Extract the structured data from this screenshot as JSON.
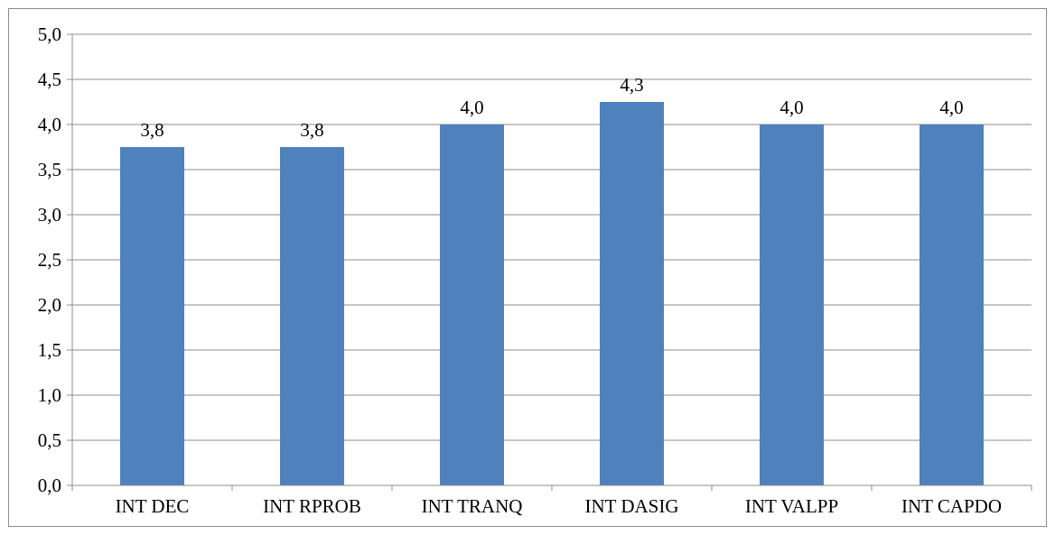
{
  "chart_data": {
    "type": "bar",
    "categories": [
      "INT DEC",
      "INT RPROB",
      "INT TRANQ",
      "INT DASIG",
      "INT VALPP",
      "INT CAPDO"
    ],
    "values": [
      3.75,
      3.75,
      4.0,
      4.25,
      4.0,
      4.0
    ],
    "data_labels": [
      "3,8",
      "3,8",
      "4,0",
      "4,3",
      "4,0",
      "4,0"
    ],
    "y_tick_labels": [
      "0,0",
      "0,5",
      "1,0",
      "1,5",
      "2,0",
      "2,5",
      "3,0",
      "3,5",
      "4,0",
      "4,5",
      "5,0"
    ],
    "ylim": [
      0,
      5
    ],
    "y_step": 0.5,
    "title": "",
    "xlabel": "",
    "ylabel": "",
    "grid": true,
    "legend": "none",
    "bar_color": "#4f81bd",
    "grid_color": "#8c8c8c"
  }
}
